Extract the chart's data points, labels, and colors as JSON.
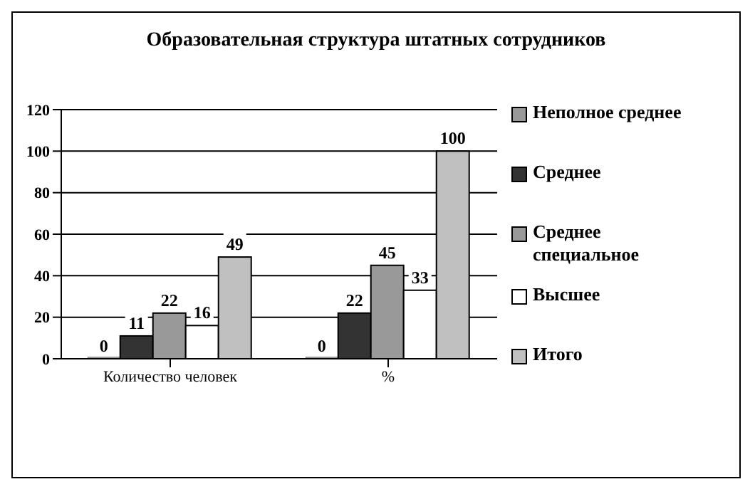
{
  "chart_data": {
    "type": "bar",
    "title": "Образовательная структура штатных сотрудников",
    "categories": [
      "Количество человек",
      "%"
    ],
    "series": [
      {
        "name": "Неполное среднее",
        "color": "#999999",
        "values": [
          0,
          0
        ]
      },
      {
        "name": "Среднее",
        "color": "#333333",
        "values": [
          11,
          22
        ]
      },
      {
        "name": "Среднее специальное",
        "color": "#999999",
        "values": [
          22,
          45
        ]
      },
      {
        "name": "Высшее",
        "color": "#ffffff",
        "values": [
          16,
          33
        ]
      },
      {
        "name": "Итого",
        "color": "#c0c0c0",
        "values": [
          49,
          100
        ]
      }
    ],
    "ylim": [
      0,
      120
    ],
    "yticks": [
      0,
      20,
      40,
      60,
      80,
      100,
      120
    ],
    "grid": "y",
    "legend": "right",
    "data_labels": true
  }
}
